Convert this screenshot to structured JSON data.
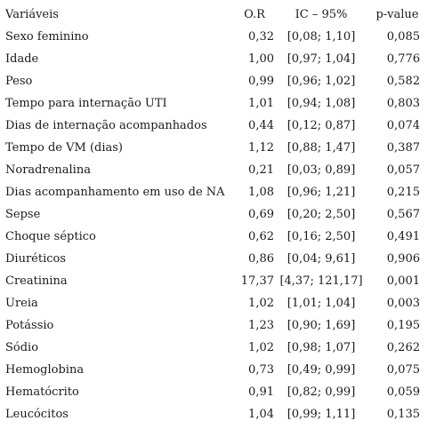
{
  "header": {
    "variable": "Variáveis",
    "or": "O.R",
    "ic": "IC – 95%",
    "pvalue": "p-value"
  },
  "rows": [
    {
      "variable": "Sexo feminino",
      "or": "0,32",
      "ic": "[0,08; 1,10]",
      "p": "0,085"
    },
    {
      "variable": "Idade",
      "or": "1,00",
      "ic": "[0,97; 1,04]",
      "p": "0,776"
    },
    {
      "variable": "Peso",
      "or": "0,99",
      "ic": "[0,96; 1,02]",
      "p": "0,582"
    },
    {
      "variable": "Tempo para internação UTI",
      "or": "1,01",
      "ic": "[0,94; 1,08]",
      "p": "0,803"
    },
    {
      "variable": "Dias de internação acompanhados",
      "or": "0,44",
      "ic": "[0,12; 0,87]",
      "p": "0,074"
    },
    {
      "variable": "Tempo de VM (dias)",
      "or": "1,12",
      "ic": "[0,88; 1,47]",
      "p": "0,387"
    },
    {
      "variable": "Noradrenalina",
      "or": "0,21",
      "ic": "[0,03; 0,89]",
      "p": "0,057"
    },
    {
      "variable": "Dias acompanhamento em uso de NA",
      "or": "1,08",
      "ic": "[0,96; 1,21]",
      "p": "0,215"
    },
    {
      "variable": "Sepse",
      "or": "0,69",
      "ic": "[0,20; 2,50]",
      "p": "0,567"
    },
    {
      "variable": "Choque séptico",
      "or": "0,62",
      "ic": "[0,16; 2,50]",
      "p": "0,491"
    },
    {
      "variable": "Diuréticos",
      "or": "0,86",
      "ic": "[0,04; 9,61]",
      "p": "0,906"
    },
    {
      "variable": "Creatinina",
      "or": "17,37",
      "ic": "[4,37; 121,17]",
      "p": "0,001"
    },
    {
      "variable": "Ureia",
      "or": "1,02",
      "ic": "[1,01; 1,04]",
      "p": "0,003"
    },
    {
      "variable": "Potássio",
      "or": "1,23",
      "ic": "[0,90; 1,69]",
      "p": "0,195"
    },
    {
      "variable": "Sódio",
      "or": "1,02",
      "ic": "[0,98; 1,07]",
      "p": "0,262"
    },
    {
      "variable": "Hemoglobina",
      "or": "0,73",
      "ic": "[0,49; 0,99]",
      "p": "0,075"
    },
    {
      "variable": "Hematócrito",
      "or": "0,91",
      "ic": "[0,82; 0,99]",
      "p": "0,059"
    },
    {
      "variable": "Leucócitos",
      "or": "1,04",
      "ic": "[0,99; 1,11]",
      "p": "0,135"
    }
  ]
}
